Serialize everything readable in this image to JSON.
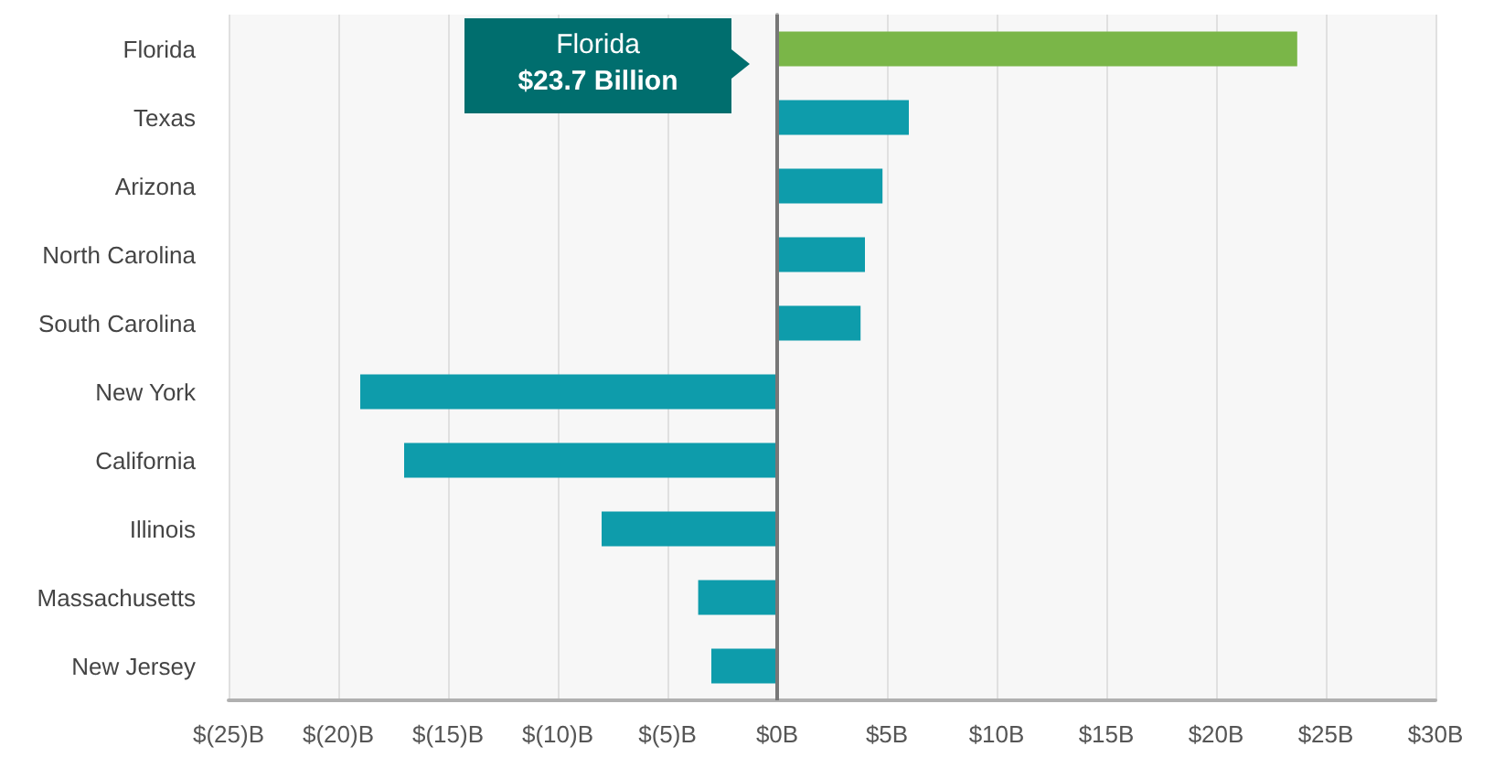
{
  "chart_data": {
    "type": "bar",
    "orientation": "horizontal",
    "categories": [
      "Florida",
      "Texas",
      "Arizona",
      "North Carolina",
      "South Carolina",
      "New York",
      "California",
      "Illinois",
      "Massachusetts",
      "New Jersey"
    ],
    "values": [
      23.7,
      6.0,
      4.8,
      4.0,
      3.8,
      -19.0,
      -17.0,
      -8.0,
      -3.6,
      -3.0
    ],
    "colors": [
      "#7ab648",
      "#0e9cab",
      "#0e9cab",
      "#0e9cab",
      "#0e9cab",
      "#0e9cab",
      "#0e9cab",
      "#0e9cab",
      "#0e9cab",
      "#0e9cab"
    ],
    "xlim": [
      -25,
      30
    ],
    "xticks": [
      {
        "value": -25,
        "label": "$(25)B"
      },
      {
        "value": -20,
        "label": "$(20)B"
      },
      {
        "value": -15,
        "label": "$(15)B"
      },
      {
        "value": -10,
        "label": "$(10)B"
      },
      {
        "value": -5,
        "label": "$(5)B"
      },
      {
        "value": 0,
        "label": "$0B"
      },
      {
        "value": 5,
        "label": "$5B"
      },
      {
        "value": 10,
        "label": "$10B"
      },
      {
        "value": 15,
        "label": "$15B"
      },
      {
        "value": 20,
        "label": "$20B"
      },
      {
        "value": 25,
        "label": "$25B"
      },
      {
        "value": 30,
        "label": "$30B"
      }
    ],
    "grid": "x",
    "annotations": [
      "Florida\n$23.7 Billion"
    ]
  }
}
